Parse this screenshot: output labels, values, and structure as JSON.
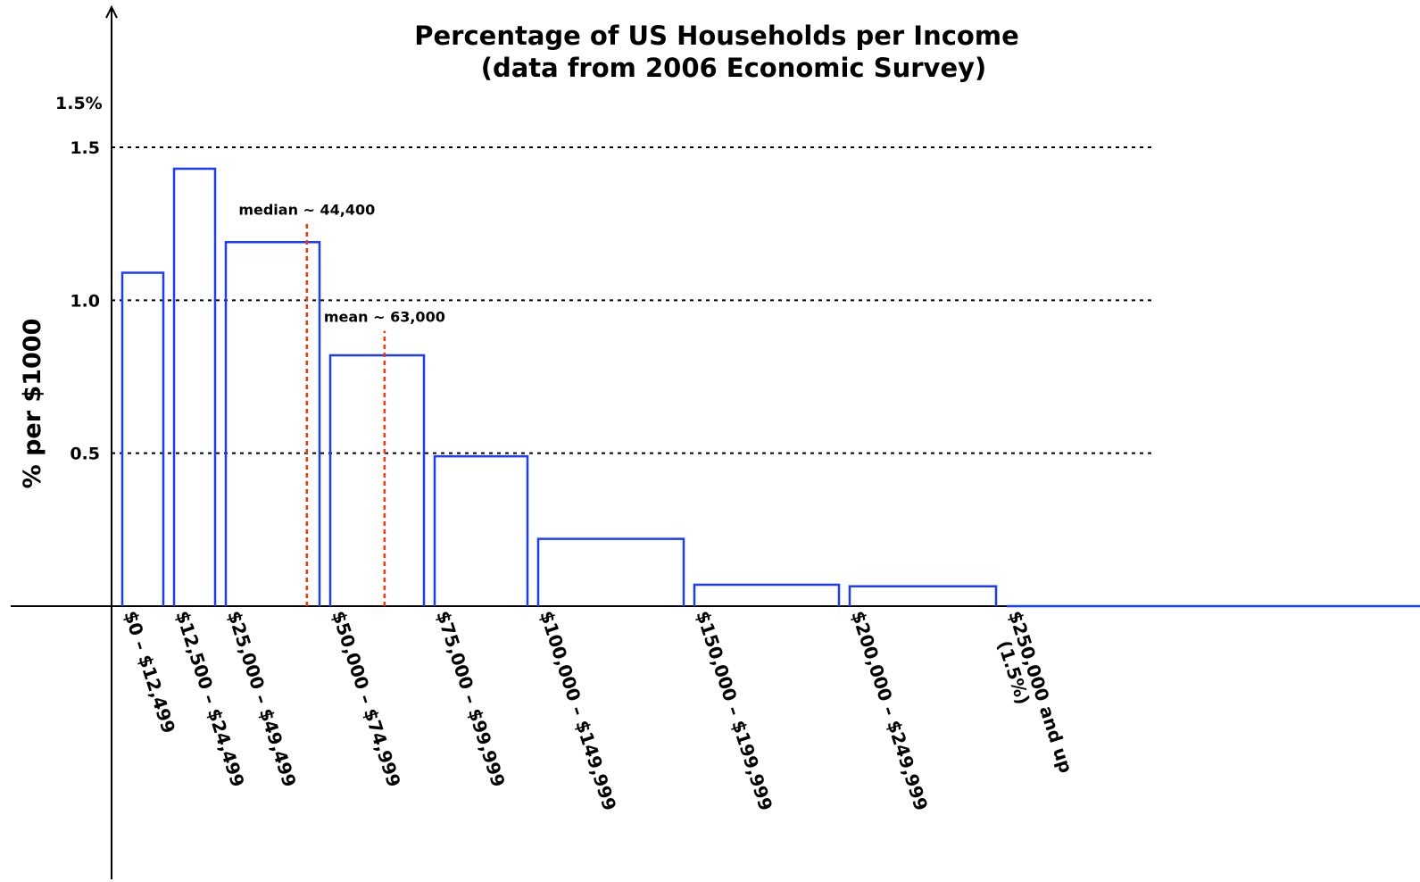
{
  "chart_data": {
    "type": "bar",
    "title": "Percentage of US Households per Income",
    "subtitle": "(data from 2006 Economic Survey)",
    "xlabel": "",
    "ylabel": "% per $1000",
    "ylim": [
      0,
      1.5
    ],
    "y_ticks": [
      "0.5",
      "1.0",
      "1.5"
    ],
    "y_axis_extra_label": "1.5%",
    "grid": "horizontal dashed at 0.5, 1.0, 1.5",
    "bar_color": "#1a3cff",
    "marker_color": "#ff3300",
    "bins": [
      {
        "label": "$0 – $12,499",
        "from": 0,
        "to": 12500,
        "value": 1.09
      },
      {
        "label": "$12,500 – $24,499",
        "from": 12500,
        "to": 25000,
        "value": 1.43
      },
      {
        "label": "$25,000 – $49,499",
        "from": 25000,
        "to": 50000,
        "value": 1.19
      },
      {
        "label": "$50,000 – $74,999",
        "from": 50000,
        "to": 75000,
        "value": 0.82
      },
      {
        "label": "$75,000 – $99,999",
        "from": 75000,
        "to": 100000,
        "value": 0.49
      },
      {
        "label": "$100,000 – $149,999",
        "from": 100000,
        "to": 150000,
        "value": 0.22
      },
      {
        "label": "$150,000 – $199,999",
        "from": 150000,
        "to": 200000,
        "value": 0.07
      },
      {
        "label": "$200,000 – $249,999",
        "from": 200000,
        "to": 250000,
        "value": 0.065
      },
      {
        "label": "$250,000 and up\n(1.5%)",
        "from": 250000,
        "to": null,
        "value": 0
      }
    ],
    "annotations": [
      {
        "label": "median ~ 44,400",
        "x": 44400,
        "y_top": 1.25
      },
      {
        "label": "mean ~ 63,000",
        "x": 63000,
        "y_top": 0.9
      }
    ]
  }
}
